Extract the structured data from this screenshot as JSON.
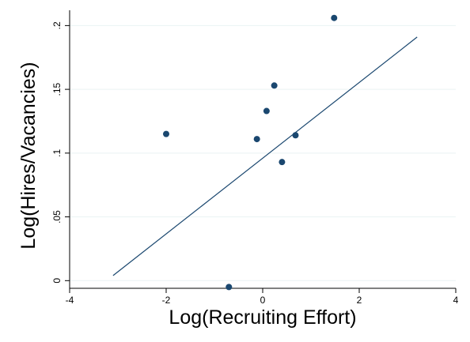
{
  "chart_data": {
    "type": "scatter",
    "title": "",
    "xlabel": "Log(Recruiting Effort)",
    "ylabel": "Log(Hires/Vacancies)",
    "xlim": [
      -4,
      4
    ],
    "ylim": [
      -0.006,
      0.212
    ],
    "x_ticks": [
      -4,
      -2,
      0,
      2,
      4
    ],
    "x_tick_labels": [
      "-4",
      "-2",
      "0",
      "2",
      "4"
    ],
    "y_ticks": [
      0,
      0.05,
      0.1,
      0.15,
      0.2
    ],
    "y_tick_labels": [
      "0",
      ".05",
      ".1",
      ".15",
      ".2"
    ],
    "grid": true,
    "legend": "none",
    "series": [
      {
        "type": "scatter",
        "points": [
          {
            "x": -2.0,
            "y": 0.115
          },
          {
            "x": -0.7,
            "y": -0.005
          },
          {
            "x": -0.12,
            "y": 0.111
          },
          {
            "x": 0.08,
            "y": 0.133
          },
          {
            "x": 0.24,
            "y": 0.153
          },
          {
            "x": 0.4,
            "y": 0.093
          },
          {
            "x": 0.68,
            "y": 0.114
          },
          {
            "x": 1.48,
            "y": 0.206
          }
        ],
        "color": "#1a476f"
      },
      {
        "type": "line",
        "points": [
          {
            "x": -3.1,
            "y": 0.004
          },
          {
            "x": 3.2,
            "y": 0.191
          }
        ],
        "color": "#1a476f"
      }
    ]
  }
}
